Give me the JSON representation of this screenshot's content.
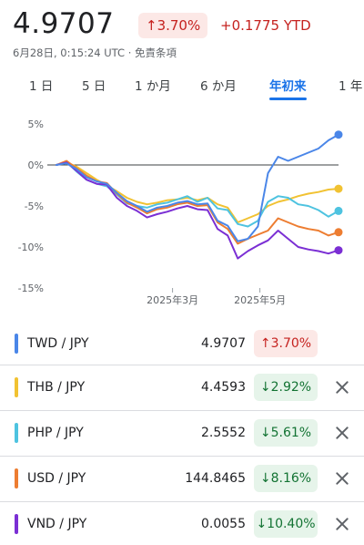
{
  "header": {
    "price": "4.9707",
    "change_pct": "↑3.70%",
    "ytd": "+0.1775 YTD",
    "subline": "6月28日, 0:15:24 UTC · 免責条項"
  },
  "tabs": [
    {
      "label": "1 日"
    },
    {
      "label": "5 日"
    },
    {
      "label": "1 か月"
    },
    {
      "label": "6 か月"
    },
    {
      "label": "年初来"
    },
    {
      "label": "1 年"
    }
  ],
  "active_tab": 4,
  "chart_data": {
    "type": "line",
    "title": "",
    "xlabel": "",
    "ylabel": "",
    "x_ticks": [
      "2025年3月",
      "2025年5月"
    ],
    "x_tick_positions": [
      0.43,
      0.73
    ],
    "y_ticks": [
      5,
      0,
      -5,
      -10,
      -15
    ],
    "y_tick_labels": [
      "5%",
      "0%",
      "-5%",
      "-10%",
      "-15%"
    ],
    "ylim": [
      -15,
      5
    ],
    "baseline": 0,
    "grid": false,
    "series": [
      {
        "name": "THB / JPY",
        "color": "#f1c232",
        "values": [
          0,
          0.3,
          -0.2,
          -1.0,
          -1.8,
          -2.5,
          -3.2,
          -4.0,
          -4.5,
          -4.8,
          -4.6,
          -4.3,
          -4.2,
          -4.0,
          -4.3,
          -4.0,
          -4.8,
          -5.2,
          -7.0,
          -6.5,
          -6.0,
          -5.0,
          -4.5,
          -4.2,
          -3.8,
          -3.5,
          -3.3,
          -3.0,
          -2.9
        ]
      },
      {
        "name": "PHP / JPY",
        "color": "#4ec3e0",
        "values": [
          0,
          0.4,
          -0.8,
          -1.8,
          -2.3,
          -2.6,
          -3.6,
          -4.7,
          -5.0,
          -5.2,
          -4.8,
          -4.6,
          -4.2,
          -3.8,
          -4.5,
          -4.0,
          -5.3,
          -5.5,
          -7.2,
          -7.5,
          -6.8,
          -4.5,
          -3.8,
          -4.0,
          -4.8,
          -5.0,
          -5.5,
          -6.3,
          -5.6
        ]
      },
      {
        "name": "USD / JPY",
        "color": "#ed7d31",
        "values": [
          0,
          0.5,
          -0.4,
          -1.3,
          -2.0,
          -2.2,
          -3.5,
          -4.6,
          -5.2,
          -5.9,
          -5.4,
          -5.2,
          -4.8,
          -4.6,
          -5.0,
          -4.9,
          -7.0,
          -7.8,
          -9.6,
          -9.0,
          -8.5,
          -8.0,
          -6.5,
          -7.0,
          -7.5,
          -7.8,
          -8.0,
          -8.6,
          -8.2
        ]
      },
      {
        "name": "VND / JPY",
        "color": "#7b2fd4",
        "values": [
          0,
          0.3,
          -0.7,
          -1.8,
          -2.3,
          -2.4,
          -4.0,
          -5.0,
          -5.6,
          -6.4,
          -6.0,
          -5.7,
          -5.3,
          -5.0,
          -5.4,
          -5.5,
          -7.8,
          -8.6,
          -11.4,
          -10.5,
          -9.8,
          -9.2,
          -8.0,
          -9.0,
          -10.0,
          -10.3,
          -10.5,
          -10.8,
          -10.4
        ]
      },
      {
        "name": "TWD / JPY",
        "color": "#4a86e8",
        "values": [
          0,
          0.2,
          -0.5,
          -1.5,
          -2.0,
          -2.3,
          -3.4,
          -4.4,
          -5.0,
          -5.7,
          -5.2,
          -5.0,
          -4.6,
          -4.4,
          -4.8,
          -4.7,
          -6.8,
          -7.4,
          -9.3,
          -9.0,
          -7.5,
          -1.0,
          1.0,
          0.5,
          1.0,
          1.5,
          2.0,
          3.0,
          3.7
        ]
      }
    ]
  },
  "legend": [
    {
      "pair": "TWD / JPY",
      "value": "4.9707",
      "change": "↑3.70%",
      "direction": "up",
      "color": "#4a86e8",
      "removable": false
    },
    {
      "pair": "THB / JPY",
      "value": "4.4593",
      "change": "↓2.92%",
      "direction": "down",
      "color": "#f1c232",
      "removable": true
    },
    {
      "pair": "PHP / JPY",
      "value": "2.5552",
      "change": "↓5.61%",
      "direction": "down",
      "color": "#4ec3e0",
      "removable": true
    },
    {
      "pair": "USD / JPY",
      "value": "144.8465",
      "change": "↓8.16%",
      "direction": "down",
      "color": "#ed7d31",
      "removable": true
    },
    {
      "pair": "VND / JPY",
      "value": "0.0055",
      "change": "↓10.40%",
      "direction": "down",
      "color": "#7b2fd4",
      "removable": true
    }
  ],
  "icons": {
    "remove": "close-icon"
  }
}
